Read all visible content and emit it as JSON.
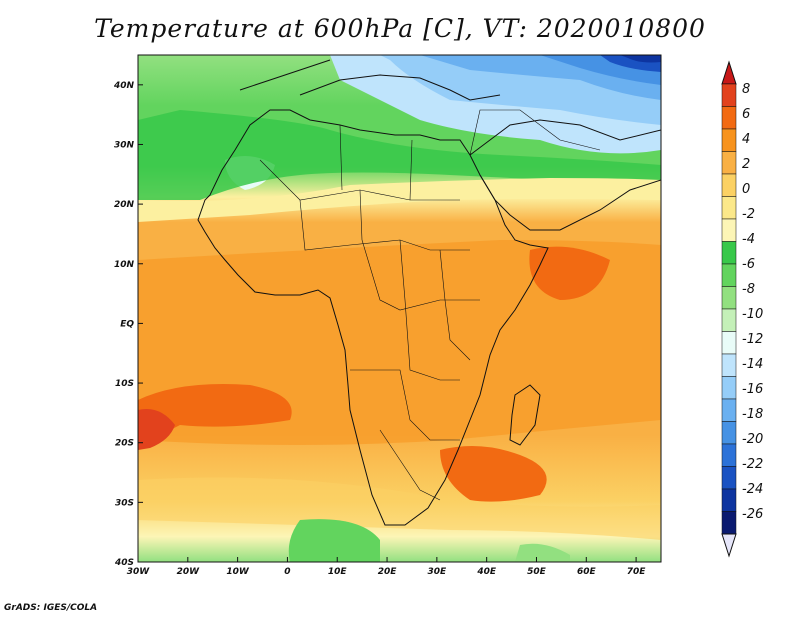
{
  "title": "Temperature at 600hPa [C], VT: 2020010800",
  "credit": "GrADS: IGES/COLA",
  "map": {
    "lon_range": [
      -30,
      75
    ],
    "lat_range": [
      -40,
      45
    ],
    "lon_ticks": [
      {
        "value": -30,
        "label": "30W"
      },
      {
        "value": -20,
        "label": "20W"
      },
      {
        "value": -10,
        "label": "10W"
      },
      {
        "value": 0,
        "label": "0"
      },
      {
        "value": 10,
        "label": "10E"
      },
      {
        "value": 20,
        "label": "20E"
      },
      {
        "value": 30,
        "label": "30E"
      },
      {
        "value": 40,
        "label": "40E"
      },
      {
        "value": 50,
        "label": "50E"
      },
      {
        "value": 60,
        "label": "60E"
      },
      {
        "value": 70,
        "label": "70E"
      }
    ],
    "lat_ticks": [
      {
        "value": 40,
        "label": "40N"
      },
      {
        "value": 30,
        "label": "30N"
      },
      {
        "value": 20,
        "label": "20N"
      },
      {
        "value": 10,
        "label": "10N"
      },
      {
        "value": 0,
        "label": "EQ"
      },
      {
        "value": -10,
        "label": "10S"
      },
      {
        "value": -20,
        "label": "20S"
      },
      {
        "value": -30,
        "label": "30S"
      },
      {
        "value": -40,
        "label": "40S"
      }
    ]
  },
  "colorbar": {
    "labels": [
      "8",
      "6",
      "4",
      "2",
      "0",
      "-2",
      "-4",
      "-6",
      "-8",
      "-10",
      "-12",
      "-14",
      "-16",
      "-18",
      "-20",
      "-22",
      "-24",
      "-26"
    ],
    "colors": [
      "#e2421d",
      "#f26a12",
      "#f7931e",
      "#f9b044",
      "#fbd164",
      "#fbe88a",
      "#fcf5b6",
      "#38c84a",
      "#62d45e",
      "#92e080",
      "#c4f0b8",
      "#e9fcf8",
      "#bfe4fc",
      "#95cdf8",
      "#6ab0f0",
      "#4692e4",
      "#2c72d8",
      "#1a52c2",
      "#0d34a0",
      "#0a1a70"
    ],
    "top_color": "#c81818",
    "bottom_color": "#e6e6fa"
  }
}
